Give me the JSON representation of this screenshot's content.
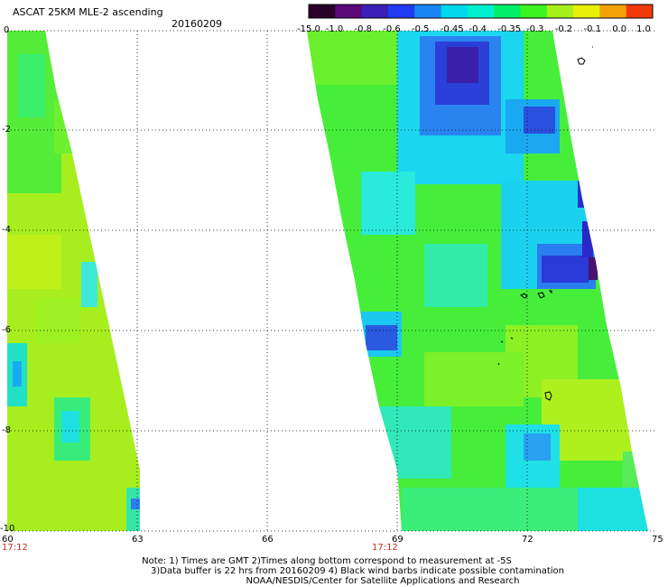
{
  "header": {
    "title": "ASCAT 25KM MLE-2 ascending",
    "date": "20160209"
  },
  "colorbar": {
    "labels": [
      "-15.0",
      "-1.0",
      "-0.8",
      "-0.6",
      "-0.5",
      "-0.45",
      "-0.4",
      "-0.35",
      "-0.3",
      "-0.2",
      "-0.1",
      "0.0",
      "1.0"
    ],
    "colors": [
      "#2a0028",
      "#5a0a78",
      "#3a1fb8",
      "#1f3cf0",
      "#1a86f5",
      "#00d8f0",
      "#00f0d0",
      "#00f06a",
      "#3cf41e",
      "#a6f01a",
      "#e8f00a",
      "#f5a20a",
      "#f03a0a"
    ]
  },
  "axes": {
    "y_ticks": [
      "0",
      "-2",
      "-4",
      "-6",
      "-8",
      "-10"
    ],
    "x_ticks": [
      "60",
      "63",
      "66",
      "69",
      "72",
      "75"
    ]
  },
  "timestamps": [
    "17:12",
    "17:12"
  ],
  "notes": [
    "Note: 1) Times are GMT 2)Times along bottom correspond to measurement at -5S",
    "3)Data buffer is 22 hrs from 20160209 4) Black wind barbs indicate possible contamination",
    "NOAA/NESDIS/Center for Satellite Applications and Research"
  ]
}
